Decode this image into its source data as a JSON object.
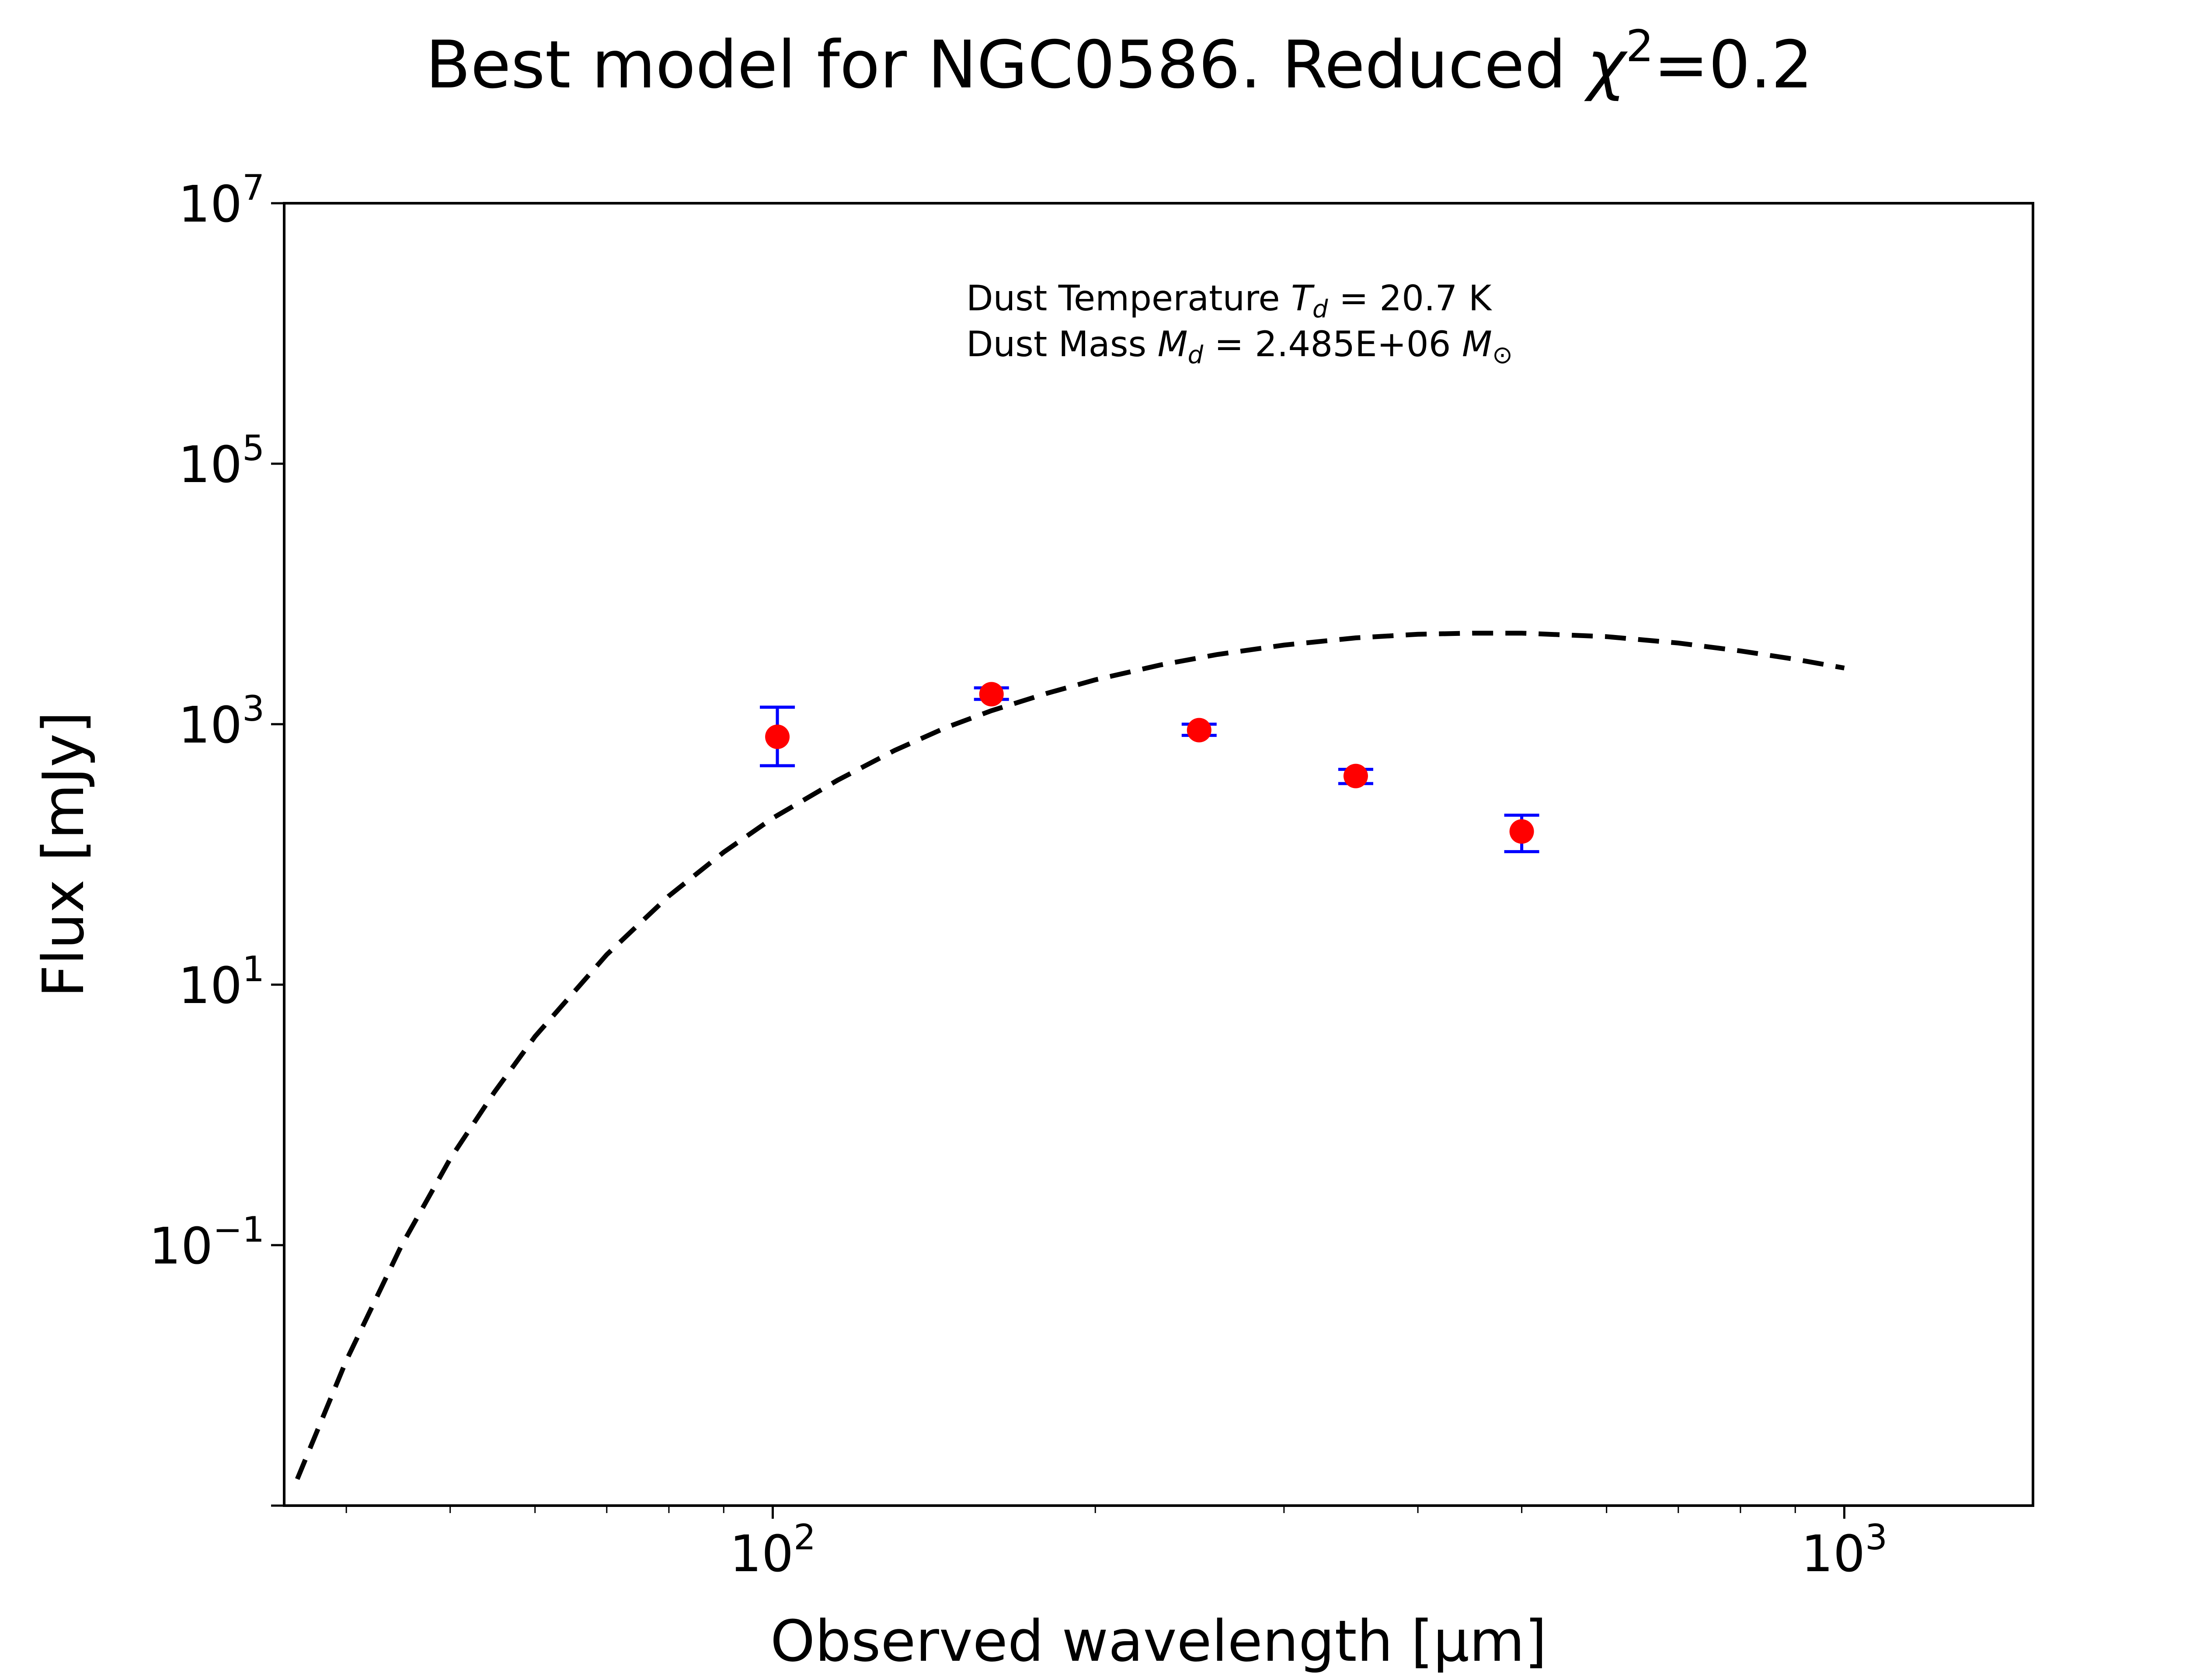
{
  "chart_data": {
    "type": "scatter",
    "title": {
      "prefix": "Best model for NGC0586. Reduced ",
      "chi_symbol": "χ",
      "chi_exponent": "2",
      "suffix": "=0.2"
    },
    "xlabel": "Observed wavelength [μm]",
    "ylabel": "Flux [mJy]",
    "x_scale": "log",
    "y_scale": "log",
    "xlim": [
      35,
      1500
    ],
    "ylim": [
      0.001,
      10000000
    ],
    "x_ticks": [
      {
        "value": 100,
        "base": "10",
        "exp": "2"
      },
      {
        "value": 1000,
        "base": "10",
        "exp": "3"
      }
    ],
    "y_ticks": [
      {
        "value": 0.1,
        "base": "10",
        "exp": "−1"
      },
      {
        "value": 10,
        "base": "10",
        "exp": "1"
      },
      {
        "value": 1000,
        "base": "10",
        "exp": "3"
      },
      {
        "value": 100000,
        "base": "10",
        "exp": "5"
      },
      {
        "value": 10000000,
        "base": "10",
        "exp": "7"
      }
    ],
    "annotations": {
      "temperature": {
        "prefix": "Dust Temperature ",
        "symbol": "T",
        "sub": "d",
        "suffix": " = 20.7 K"
      },
      "mass": {
        "prefix": "Dust Mass ",
        "symbol": "M",
        "sub": "d",
        "middle": " = 2.485E+06 ",
        "unit_symbol": "M",
        "unit_sub": "⊙"
      }
    },
    "series": [
      {
        "kind": "model",
        "color": "#000000",
        "line_style": "dashed",
        "x": [
          36,
          40,
          45,
          50,
          55,
          60,
          70,
          80,
          90,
          100,
          115,
          130,
          145,
          160,
          180,
          200,
          230,
          260,
          300,
          350,
          400,
          450,
          500,
          600,
          700,
          800,
          900,
          1000
        ],
        "y": [
          0.0016,
          0.013,
          0.098,
          0.46,
          1.5,
          4.0,
          17,
          48,
          104,
          190,
          372,
          630,
          940,
          1270,
          1720,
          2190,
          2850,
          3430,
          4050,
          4600,
          4900,
          5000,
          5000,
          4700,
          4200,
          3650,
          3150,
          2700
        ]
      },
      {
        "kind": "observed",
        "color": "#ff0000",
        "error_color": "#0000ff",
        "x": [
          101,
          160,
          250,
          350,
          500
        ],
        "y": [
          800,
          1700,
          900,
          400,
          150
        ],
        "y_err_low": [
          [
            480,
            1350
          ],
          [
            1550
          ],
          [
            820
          ],
          [
            350
          ],
          [
            105
          ]
        ],
        "y_err_high": [
          [
            1350,
            480
          ],
          [
            1900
          ],
          [
            1000
          ],
          [
            450
          ],
          [
            200
          ]
        ]
      }
    ]
  }
}
